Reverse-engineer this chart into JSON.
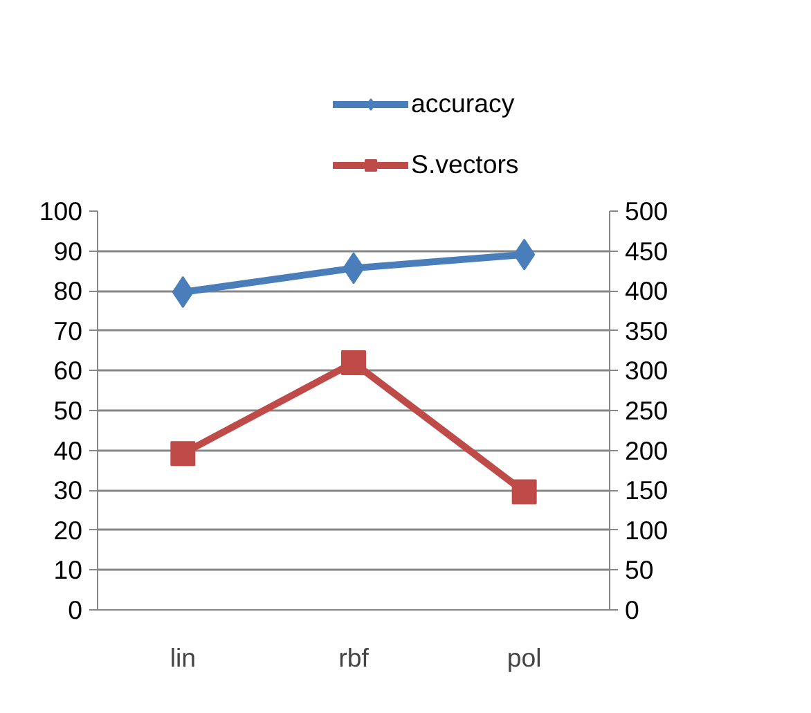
{
  "chart_data": {
    "type": "line",
    "categories": [
      "lin",
      "rbf",
      "pol"
    ],
    "series": [
      {
        "name": "accuracy",
        "color": "#4a7ebb",
        "values": [
          79.7,
          85.7,
          89.1
        ],
        "marker": "diamond"
      },
      {
        "name": "S.vectors",
        "color": "#be4b48",
        "values": [
          196,
          310,
          148
        ],
        "marker": "square",
        "axis": "y2"
      }
    ],
    "ylim": [
      0,
      100
    ],
    "yticks": [
      0,
      10,
      20,
      30,
      40,
      50,
      60,
      70,
      80,
      90,
      100
    ],
    "y2lim": [
      0,
      500
    ],
    "y2ticks": [
      0,
      50,
      100,
      150,
      200,
      250,
      300,
      350,
      400,
      450,
      500
    ],
    "grid": "y",
    "legend": "top",
    "line_style": "solid"
  }
}
